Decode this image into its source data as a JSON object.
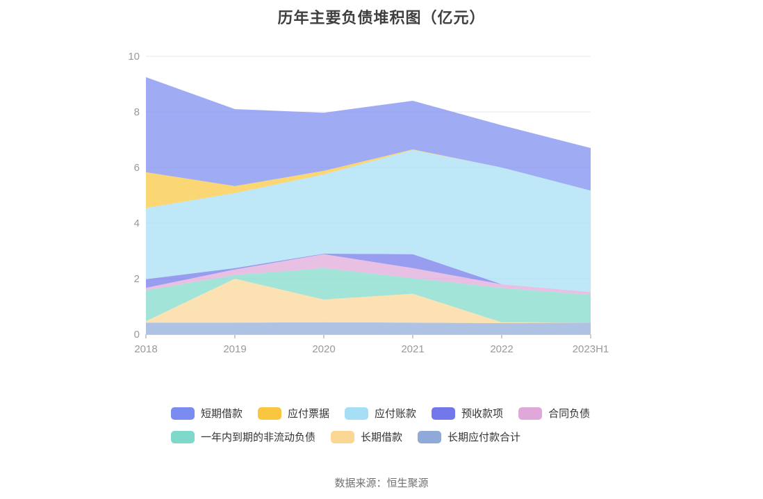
{
  "title": "历年主要负债堆积图（亿元）",
  "footer": {
    "source": "数据来源：恒生聚源"
  },
  "axis_colors": {
    "grid_line": "#e9e9f2",
    "axis_line": "#cccccc",
    "tick_mark": "#999999",
    "tick_label": "#999999"
  },
  "chart_data": {
    "type": "area",
    "stacked": true,
    "stack_note": "series listed in legend order; stacking bottom-to-top is the reverse of this list (last series is the bottom band)",
    "title": "历年主要负债堆积图（亿元）",
    "unit": "亿元",
    "categories": [
      "2018",
      "2019",
      "2020",
      "2021",
      "2022",
      "2023H1"
    ],
    "y_ticks": [
      0,
      2,
      4,
      6,
      8,
      10
    ],
    "ylim": [
      0,
      10
    ],
    "grid": true,
    "legend_position": "bottom",
    "area_opacity": 0.72,
    "series": [
      {
        "id": "short-term-borrowings",
        "name": "短期借款",
        "color": "#7a8cf0",
        "values": [
          3.42,
          2.77,
          2.09,
          1.75,
          1.52,
          1.53
        ]
      },
      {
        "id": "notes-payable",
        "name": "应付票据",
        "color": "#fac640",
        "values": [
          1.29,
          0.25,
          0.13,
          0.02,
          0,
          0
        ]
      },
      {
        "id": "accounts-payable",
        "name": "应付账款",
        "color": "#a5def5",
        "values": [
          2.56,
          2.7,
          2.85,
          3.75,
          4.2,
          3.65
        ]
      },
      {
        "id": "advance-receipts",
        "name": "预收款项",
        "color": "#7277e9",
        "values": [
          0.31,
          0.05,
          0.02,
          0.5,
          0,
          0
        ]
      },
      {
        "id": "contract-liabilities",
        "name": "合同负债",
        "color": "#dfa8d8",
        "values": [
          0.09,
          0.2,
          0.5,
          0.36,
          0.13,
          0.1
        ]
      },
      {
        "id": "non-current-liabilities-due-within-one-year",
        "name": "一年内到期的非流动负债",
        "color": "#7fd9cb",
        "values": [
          1.11,
          0.13,
          1.13,
          0.56,
          1.24,
          1.0
        ]
      },
      {
        "id": "long-term-borrowings",
        "name": "长期借款",
        "color": "#fbd794",
        "values": [
          0.05,
          1.58,
          0.82,
          1.04,
          0.03,
          0
        ]
      },
      {
        "id": "long-term-payables-total",
        "name": "长期应付款合计",
        "color": "#8faad9",
        "values": [
          0.42,
          0.42,
          0.43,
          0.42,
          0.4,
          0.42
        ]
      }
    ]
  }
}
